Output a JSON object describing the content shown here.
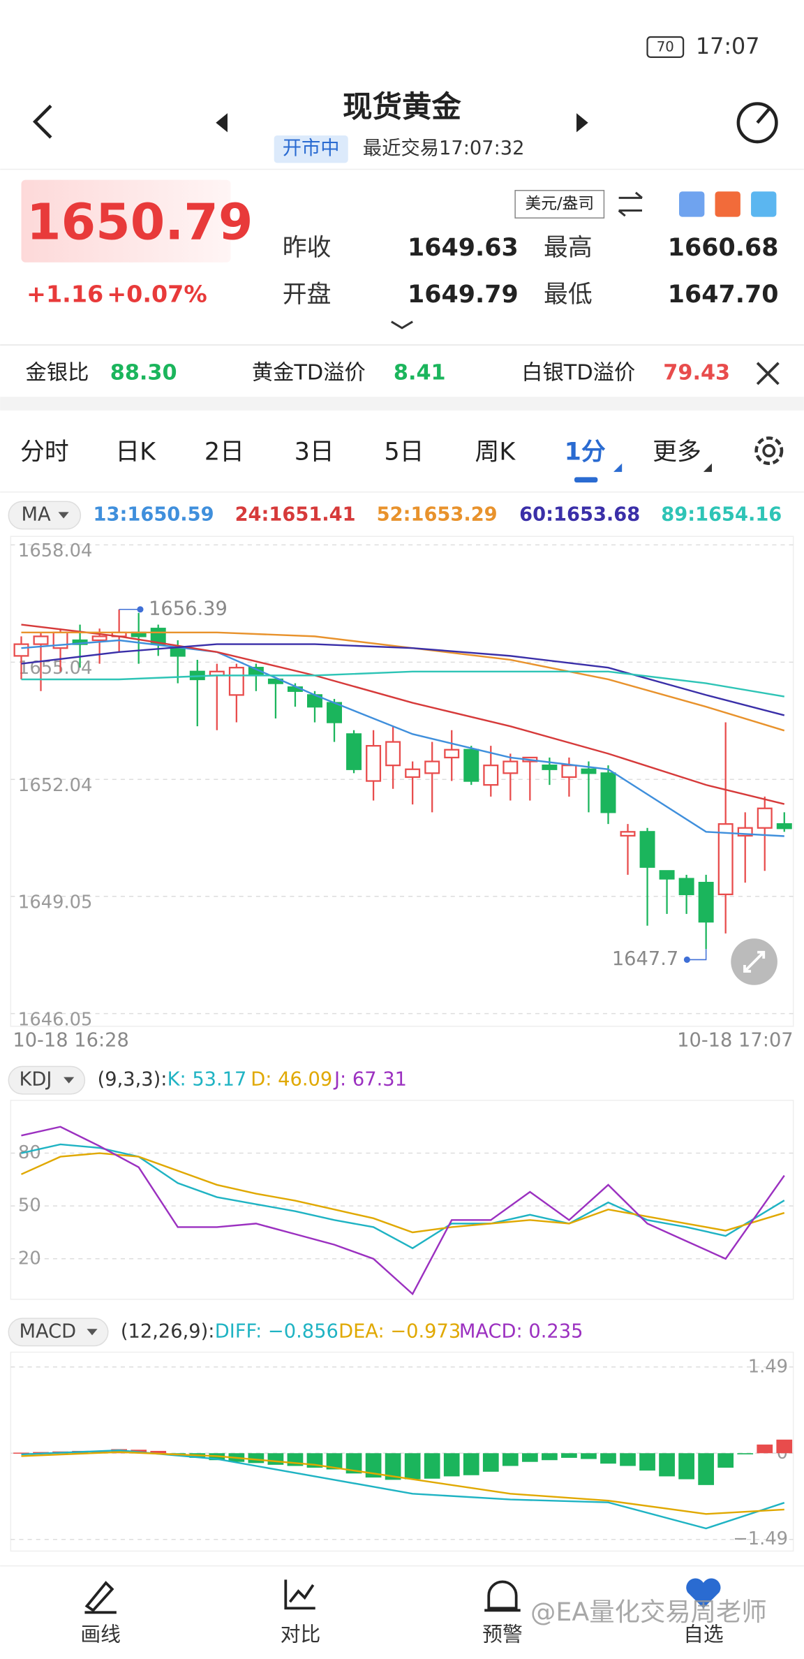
{
  "status": {
    "time": "17:07",
    "battery": "70"
  },
  "header": {
    "title": "现货黄金",
    "market_status": "开市中",
    "last_trade": "最近交易17:07:32"
  },
  "quote": {
    "price": "1650.79",
    "change": "+1.16",
    "change_pct": "+0.07%",
    "unit": "美元/盎司",
    "stats": [
      {
        "label": "昨收",
        "value": "1649.63"
      },
      {
        "label": "最高",
        "value": "1660.68"
      },
      {
        "label": "开盘",
        "value": "1649.79"
      },
      {
        "label": "最低",
        "value": "1647.70"
      }
    ]
  },
  "ratios": [
    {
      "label": "金银比",
      "value": "88.30"
    },
    {
      "label": "黄金TD溢价",
      "value": "8.41"
    },
    {
      "label": "白银TD溢价",
      "value": "79.43"
    }
  ],
  "tabs": [
    "分时",
    "日K",
    "2日",
    "3日",
    "5日",
    "周K",
    "1分",
    "更多"
  ],
  "chart_data": [
    {
      "type": "candlestick",
      "indicator": "MA",
      "open": [
        1655.2,
        1655.5,
        1655.4,
        1655.6,
        1655.6,
        1655.7,
        1655.8,
        1655.9,
        1655.4,
        1654.8,
        1654.7,
        1654.2,
        1654.9,
        1654.6,
        1654.4,
        1654.2,
        1654.0,
        1653.2,
        1652.0,
        1652.4,
        1652.1,
        1652.2,
        1652.6,
        1652.8,
        1651.9,
        1652.2,
        1652.5,
        1652.4,
        1652.1,
        1652.3,
        1652.2,
        1650.6,
        1650.7,
        1649.7,
        1649.5,
        1649.4,
        1649.1,
        1650.6,
        1650.8,
        1650.9
      ],
      "high": [
        1655.7,
        1655.8,
        1655.9,
        1656.0,
        1655.9,
        1656.39,
        1656.3,
        1656.0,
        1655.6,
        1655.1,
        1655.0,
        1655.0,
        1655.0,
        1654.6,
        1654.5,
        1654.3,
        1654.1,
        1653.3,
        1653.3,
        1653.4,
        1652.5,
        1653.0,
        1653.3,
        1652.9,
        1652.9,
        1652.7,
        1652.6,
        1652.6,
        1652.6,
        1652.5,
        1652.4,
        1650.9,
        1650.8,
        1649.7,
        1649.6,
        1649.6,
        1653.5,
        1651.2,
        1651.6,
        1651.2
      ],
      "low": [
        1654.6,
        1654.3,
        1654.8,
        1654.9,
        1655.0,
        1655.3,
        1655.0,
        1655.2,
        1654.5,
        1653.4,
        1653.3,
        1653.5,
        1654.3,
        1653.6,
        1653.9,
        1653.5,
        1653.0,
        1652.2,
        1651.5,
        1651.8,
        1651.4,
        1651.2,
        1652.0,
        1651.9,
        1651.6,
        1651.5,
        1651.5,
        1651.9,
        1651.6,
        1651.2,
        1650.9,
        1649.6,
        1648.3,
        1648.6,
        1648.6,
        1647.7,
        1648.1,
        1649.4,
        1649.7,
        1650.7
      ],
      "close": [
        1655.5,
        1655.7,
        1655.8,
        1655.5,
        1655.7,
        1655.8,
        1655.7,
        1655.5,
        1655.2,
        1654.6,
        1654.8,
        1654.9,
        1654.7,
        1654.5,
        1654.3,
        1653.9,
        1653.5,
        1652.3,
        1652.9,
        1653.0,
        1652.3,
        1652.5,
        1652.8,
        1652.0,
        1652.4,
        1652.5,
        1652.6,
        1652.3,
        1652.4,
        1652.2,
        1651.2,
        1650.7,
        1649.8,
        1649.5,
        1649.1,
        1648.4,
        1650.9,
        1650.8,
        1651.3,
        1650.79
      ],
      "up_color": "#e84c4c",
      "down_color": "#1bb55c",
      "ma_x": [
        0,
        5,
        10,
        15,
        20,
        25,
        30,
        35,
        39
      ],
      "series": [
        {
          "name": "13:1650.59",
          "color": "#3f8fdc",
          "values": [
            1655.4,
            1655.6,
            1655.3,
            1654.2,
            1653.2,
            1652.6,
            1652.3,
            1650.7,
            1650.59
          ]
        },
        {
          "name": "24:1651.41",
          "color": "#d63a3a",
          "values": [
            1656.0,
            1655.7,
            1655.3,
            1654.7,
            1654.0,
            1653.4,
            1652.7,
            1651.9,
            1651.41
          ]
        },
        {
          "name": "52:1653.29",
          "color": "#e8922c",
          "values": [
            1655.8,
            1655.8,
            1655.8,
            1655.7,
            1655.4,
            1655.1,
            1654.6,
            1653.9,
            1653.29
          ]
        },
        {
          "name": "60:1653.68",
          "color": "#3a2fa8",
          "values": [
            1655.0,
            1655.3,
            1655.5,
            1655.5,
            1655.4,
            1655.2,
            1654.9,
            1654.2,
            1653.68
          ]
        },
        {
          "name": "89:1654.16",
          "color": "#2ec4b6",
          "values": [
            1654.6,
            1654.6,
            1654.7,
            1654.7,
            1654.8,
            1654.8,
            1654.8,
            1654.5,
            1654.16
          ]
        }
      ],
      "ylim": [
        1646.05,
        1658.04
      ],
      "yticks": [
        1658.04,
        1655.04,
        1652.04,
        1649.05,
        1646.05
      ],
      "grid": true,
      "x_labels": [
        "10-18 16:28",
        "10-18 17:07"
      ],
      "max_label": "1656.39",
      "min_label": "1647.7"
    },
    {
      "type": "line",
      "indicator": "KDJ",
      "params": "(9,3,3):",
      "x": [
        0,
        2,
        4,
        6,
        8,
        10,
        12,
        14,
        16,
        18,
        20,
        22,
        24,
        26,
        28,
        30,
        32,
        34,
        36,
        39
      ],
      "series": [
        {
          "name": "K: 53.17",
          "color": "#1fb3c3",
          "values": [
            80,
            85,
            83,
            78,
            63,
            55,
            51,
            47,
            42,
            38,
            26,
            40,
            40,
            45,
            40,
            52,
            42,
            38,
            33,
            53.17
          ]
        },
        {
          "name": "D: 46.09",
          "color": "#e0a800",
          "values": [
            68,
            78,
            80,
            78,
            70,
            62,
            57,
            53,
            48,
            43,
            35,
            38,
            40,
            42,
            40,
            48,
            44,
            40,
            36,
            46.09
          ]
        },
        {
          "name": "J: 67.31",
          "color": "#9b30c0",
          "values": [
            90,
            95,
            84,
            72,
            38,
            38,
            40,
            34,
            28,
            20,
            0,
            42,
            42,
            58,
            42,
            62,
            40,
            30,
            20,
            67.31
          ]
        }
      ],
      "ylim": [
        0,
        110
      ],
      "yticks": [
        80,
        50,
        20
      ],
      "grid": true
    },
    {
      "type": "macd",
      "indicator": "MACD",
      "params": "(12,26,9):",
      "x": [
        0,
        5,
        10,
        15,
        20,
        25,
        30,
        35,
        39
      ],
      "series": [
        {
          "name": "DIFF: −0.856",
          "color": "#1fb3c3",
          "values": [
            -0.02,
            0.05,
            -0.1,
            -0.4,
            -0.7,
            -0.8,
            -0.85,
            -1.3,
            -0.856
          ]
        },
        {
          "name": "DEA: −0.973",
          "color": "#e0a800",
          "values": [
            -0.05,
            0.02,
            -0.05,
            -0.2,
            -0.45,
            -0.7,
            -0.82,
            -1.05,
            -0.973
          ]
        }
      ],
      "histogram": {
        "name": "MACD: 0.235",
        "color": "#9b30c0",
        "up_color": "#e84c4c",
        "down_color": "#1bb55c",
        "values": [
          0.01,
          0.02,
          0.03,
          0.04,
          0.04,
          0.07,
          0.06,
          0.04,
          -0.02,
          -0.08,
          -0.12,
          -0.15,
          -0.17,
          -0.2,
          -0.22,
          -0.25,
          -0.28,
          -0.35,
          -0.42,
          -0.46,
          -0.45,
          -0.44,
          -0.4,
          -0.38,
          -0.32,
          -0.22,
          -0.15,
          -0.12,
          -0.08,
          -0.1,
          -0.18,
          -0.22,
          -0.3,
          -0.4,
          -0.45,
          -0.55,
          -0.25,
          -0.02,
          0.15,
          0.235
        ]
      },
      "ylim": [
        -1.6,
        1.6
      ],
      "yticks": [
        1.49,
        0,
        {
          "value": -1.49,
          "label": "−1.49"
        }
      ],
      "grid": true
    }
  ],
  "nav": [
    "画线",
    "对比",
    "预警",
    "自选"
  ],
  "watermark": "@EA量化交易周老师"
}
